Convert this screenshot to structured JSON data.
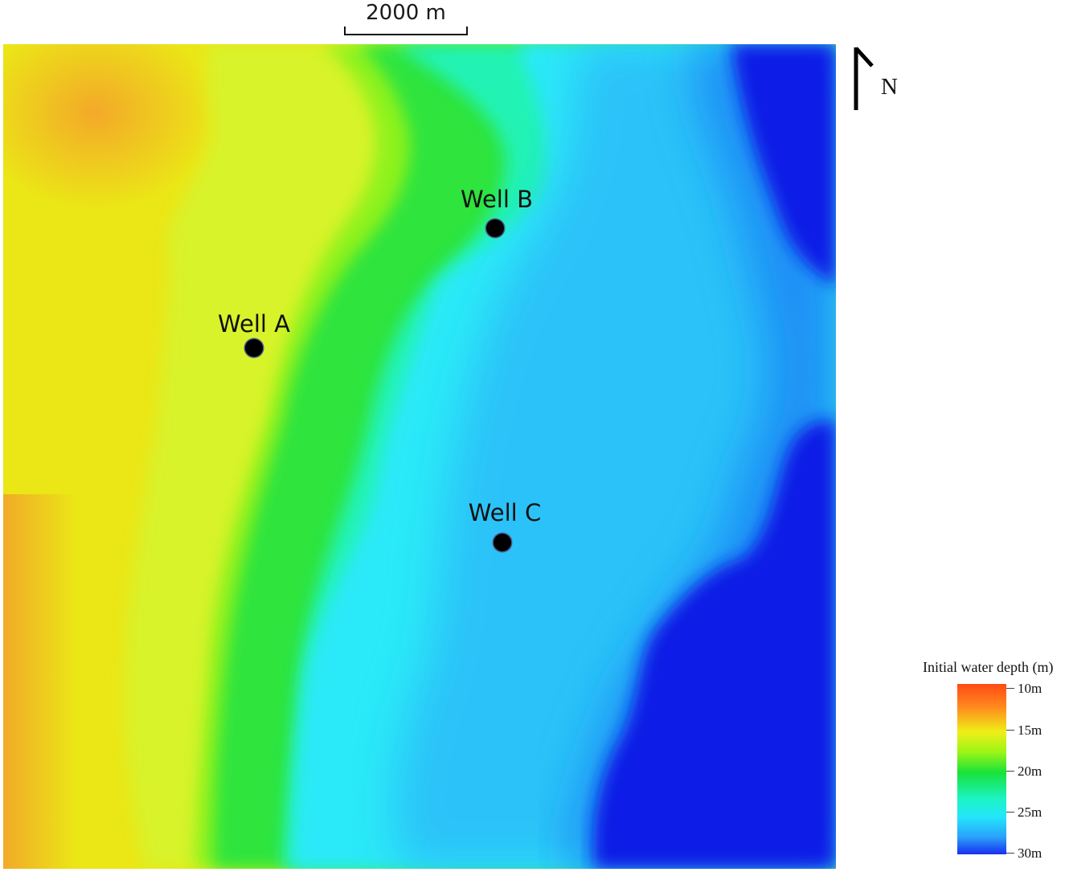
{
  "scale_bar": {
    "label": "2000 m"
  },
  "north_arrow": {
    "label": "N"
  },
  "wells": [
    {
      "label": "Well A"
    },
    {
      "label": "Well B"
    },
    {
      "label": "Well C"
    }
  ],
  "legend": {
    "title": "Initial water depth (m)",
    "ticks": [
      "10m",
      "15m",
      "20m",
      "25m",
      "30m"
    ],
    "colors": [
      "#ff4a14",
      "#ff8c1e",
      "#f0ee18",
      "#9cf516",
      "#19e23a",
      "#1cf4c8",
      "#24e6fa",
      "#2aa0fa",
      "#1a2ef0"
    ]
  },
  "map_colors": {
    "shallow_orange": "#f6ae22",
    "yellow": "#e9ef16",
    "yellow_green": "#d9f42c",
    "green": "#5cef1a",
    "teal": "#1ff3b0",
    "cyan": "#2ae6f6",
    "light_blue": "#2bc8f8",
    "deep_blue": "#0a1be6"
  }
}
